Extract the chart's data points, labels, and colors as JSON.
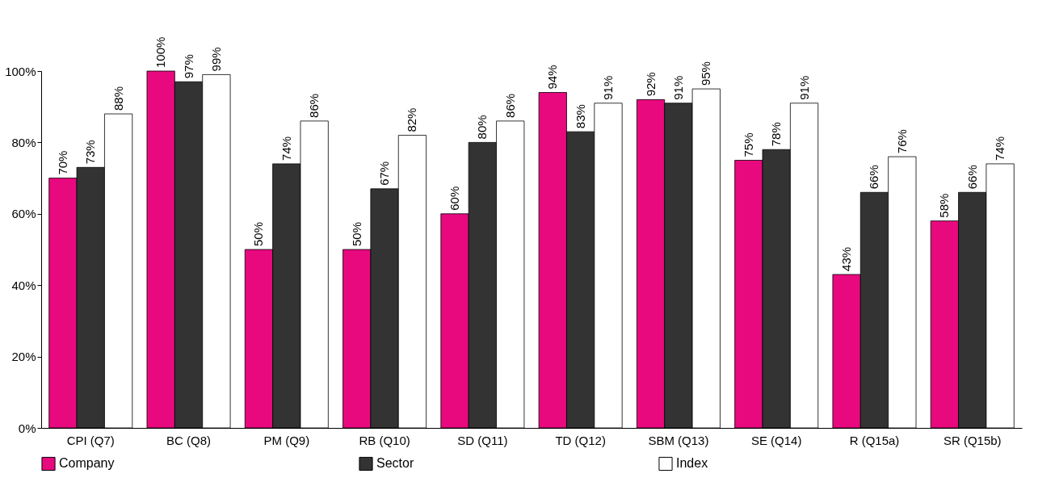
{
  "chart_data": {
    "type": "bar",
    "categories": [
      "CPI (Q7)",
      "BC (Q8)",
      "PM (Q9)",
      "RB (Q10)",
      "SD (Q11)",
      "TD (Q12)",
      "SBM (Q13)",
      "SE (Q14)",
      "R (Q15a)",
      "SR (Q15b)"
    ],
    "series": [
      {
        "name": "Company",
        "color": "#e8097f",
        "values": [
          70,
          100,
          50,
          50,
          60,
          94,
          92,
          75,
          43,
          58
        ],
        "value_labels": [
          "70%",
          "100%",
          "50%",
          "50%",
          "60%",
          "94%",
          "92%",
          "75%",
          "43%",
          "58%"
        ]
      },
      {
        "name": "Sector",
        "color": "#333333",
        "values": [
          73,
          97,
          74,
          67,
          80,
          83,
          91,
          78,
          66,
          66
        ],
        "value_labels": [
          "73%",
          "97%",
          "74%",
          "67%",
          "80%",
          "83%",
          "91%",
          "78%",
          "66%",
          "66%"
        ]
      },
      {
        "name": "Index",
        "color": "#ffffff",
        "values": [
          88,
          99,
          86,
          82,
          86,
          91,
          95,
          91,
          76,
          74
        ],
        "value_labels": [
          "88%",
          "99%",
          "86%",
          "82%",
          "86%",
          "91%",
          "95%",
          "91%",
          "76%",
          "74%"
        ]
      }
    ],
    "ylim": [
      0,
      100
    ],
    "yticks": [
      {
        "value": 0,
        "label": "0%"
      },
      {
        "value": 20,
        "label": "20%"
      },
      {
        "value": 40,
        "label": "40%"
      },
      {
        "value": 60,
        "label": "60%"
      },
      {
        "value": 80,
        "label": "80%"
      },
      {
        "value": 100,
        "label": "100%"
      }
    ],
    "grid": false,
    "legend": "bottom"
  }
}
